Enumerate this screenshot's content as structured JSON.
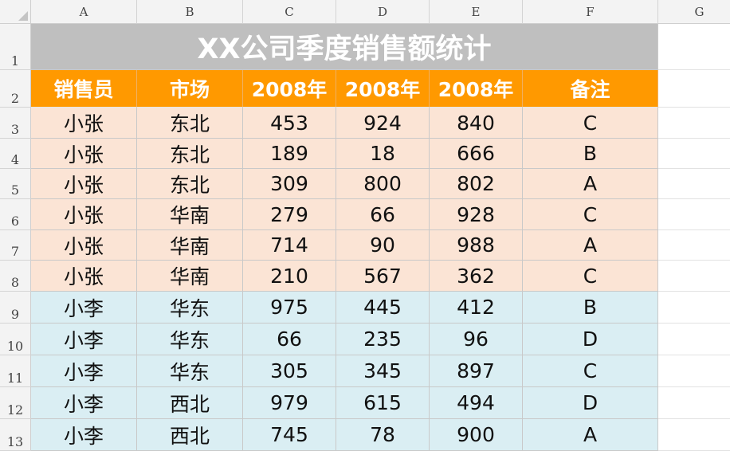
{
  "sheet": {
    "column_letters": [
      "A",
      "B",
      "C",
      "D",
      "E",
      "F",
      "G"
    ],
    "row_numbers": [
      "1",
      "2",
      "3",
      "4",
      "5",
      "6",
      "7",
      "8",
      "9",
      "10",
      "11",
      "12",
      "13"
    ],
    "title": "XX公司季度销售额统计",
    "headers": [
      "销售员",
      "市场",
      "2008年",
      "2008年",
      "2008年",
      "备注"
    ],
    "rows": [
      [
        "小张",
        "东北",
        "453",
        "924",
        "840",
        "C"
      ],
      [
        "小张",
        "东北",
        "189",
        "18",
        "666",
        "B"
      ],
      [
        "小张",
        "东北",
        "309",
        "800",
        "802",
        "A"
      ],
      [
        "小张",
        "华南",
        "279",
        "66",
        "928",
        "C"
      ],
      [
        "小张",
        "华南",
        "714",
        "90",
        "988",
        "A"
      ],
      [
        "小张",
        "华南",
        "210",
        "567",
        "362",
        "C"
      ],
      [
        "小李",
        "华东",
        "975",
        "445",
        "412",
        "B"
      ],
      [
        "小李",
        "华东",
        "66",
        "235",
        "96",
        "D"
      ],
      [
        "小李",
        "华东",
        "305",
        "345",
        "897",
        "C"
      ],
      [
        "小李",
        "西北",
        "979",
        "615",
        "494",
        "D"
      ],
      [
        "小李",
        "西北",
        "745",
        "78",
        "900",
        "A"
      ]
    ],
    "colors": {
      "title_fill": "#bfbfbf",
      "header_fill": "#ff9900",
      "group1_fill": "#fbe4d5",
      "group2_fill": "#daeef3"
    }
  }
}
